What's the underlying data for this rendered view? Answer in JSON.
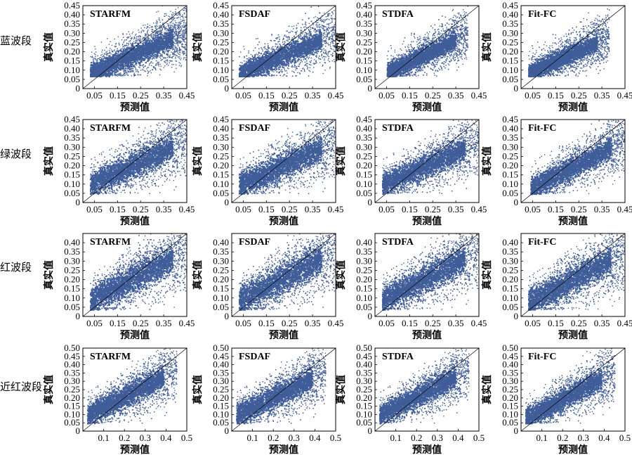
{
  "figure": {
    "x_axis_label": "预测值",
    "y_axis_label": "真实值",
    "point_color": "#3f5d98",
    "row_labels": [
      "蓝波段",
      "绿波段",
      "红波段",
      "近红波段"
    ],
    "method_labels": [
      "STARFM",
      "FSDAF",
      "STDFA",
      "Fit-FC"
    ]
  },
  "chart_data": [
    {
      "type": "scatter",
      "band": "蓝波段",
      "panel_label": "STARFM",
      "xlabel": "预测值",
      "ylabel": "真实值",
      "xlim": [
        0,
        0.45
      ],
      "ylim": [
        0,
        0.45
      ],
      "xticks": [
        "0.05",
        "0.15",
        "0.25",
        "0.35",
        "0.45"
      ],
      "yticks": [
        "0",
        "0.05",
        "0.10",
        "0.15",
        "0.20",
        "0.25",
        "0.30",
        "0.35",
        "0.40",
        "0.45"
      ],
      "reference_line": "1:1",
      "trend": {
        "x": [
          0.03,
          0.45
        ],
        "y": [
          0.085,
          0.31
        ]
      },
      "y_floor": 0.07,
      "spread": 0.055
    },
    {
      "type": "scatter",
      "band": "蓝波段",
      "panel_label": "FSDAF",
      "xlabel": "预测值",
      "ylabel": "真实值",
      "xlim": [
        0,
        0.45
      ],
      "ylim": [
        0,
        0.45
      ],
      "xticks": [
        "0.05",
        "0.15",
        "0.25",
        "0.35",
        "0.45"
      ],
      "yticks": [
        "0",
        "0.05",
        "0.10",
        "0.15",
        "0.20",
        "0.25",
        "0.30",
        "0.35",
        "0.40",
        "0.45"
      ],
      "reference_line": "1:1",
      "trend": {
        "x": [
          0.03,
          0.45
        ],
        "y": [
          0.085,
          0.3
        ]
      },
      "y_floor": 0.07,
      "spread": 0.055
    },
    {
      "type": "scatter",
      "band": "蓝波段",
      "panel_label": "STDFA",
      "xlabel": "预测值",
      "ylabel": "真实值",
      "xlim": [
        0,
        0.45
      ],
      "ylim": [
        0,
        0.45
      ],
      "xticks": [
        "0.05",
        "0.15",
        "0.25",
        "0.35",
        "0.45"
      ],
      "yticks": [
        "0",
        "0.05",
        "0.10",
        "0.15",
        "0.20",
        "0.25",
        "0.30",
        "0.35",
        "0.40",
        "0.45"
      ],
      "reference_line": "1:1",
      "trend": {
        "x": [
          0.05,
          0.4
        ],
        "y": [
          0.09,
          0.3
        ]
      },
      "y_floor": 0.07,
      "spread": 0.05
    },
    {
      "type": "scatter",
      "band": "蓝波段",
      "panel_label": "Fit-FC",
      "xlabel": "预测值",
      "ylabel": "真实值",
      "xlim": [
        0,
        0.45
      ],
      "ylim": [
        0,
        0.45
      ],
      "xticks": [
        "0.05",
        "0.15",
        "0.25",
        "0.35",
        "0.45"
      ],
      "yticks": [
        "0",
        "0.05",
        "0.10",
        "0.15",
        "0.20",
        "0.25",
        "0.30",
        "0.35",
        "0.40",
        "0.45"
      ],
      "reference_line": "1:1",
      "trend": {
        "x": [
          0.03,
          0.38
        ],
        "y": [
          0.09,
          0.28
        ]
      },
      "y_floor": 0.07,
      "spread": 0.05
    },
    {
      "type": "scatter",
      "band": "绿波段",
      "panel_label": "STARFM",
      "xlabel": "预测值",
      "ylabel": "真实值",
      "xlim": [
        0,
        0.45
      ],
      "ylim": [
        0,
        0.45
      ],
      "xticks": [
        "0.05",
        "0.15",
        "0.25",
        "0.35",
        "0.45"
      ],
      "yticks": [
        "0",
        "0.05",
        "0.10",
        "0.15",
        "0.20",
        "0.25",
        "0.30",
        "0.35",
        "0.40",
        "0.45"
      ],
      "reference_line": "1:1",
      "trend": {
        "x": [
          0.03,
          0.45
        ],
        "y": [
          0.1,
          0.34
        ]
      },
      "y_floor": 0.05,
      "spread": 0.07
    },
    {
      "type": "scatter",
      "band": "绿波段",
      "panel_label": "FSDAF",
      "xlabel": "预测值",
      "ylabel": "真实值",
      "xlim": [
        0,
        0.45
      ],
      "ylim": [
        0,
        0.45
      ],
      "xticks": [
        "0.05",
        "0.15",
        "0.25",
        "0.35",
        "0.45"
      ],
      "yticks": [
        "0",
        "0.05",
        "0.10",
        "0.15",
        "0.20",
        "0.25",
        "0.30",
        "0.35",
        "0.40",
        "0.45"
      ],
      "reference_line": "1:1",
      "trend": {
        "x": [
          0.03,
          0.45
        ],
        "y": [
          0.1,
          0.33
        ]
      },
      "y_floor": 0.05,
      "spread": 0.07
    },
    {
      "type": "scatter",
      "band": "绿波段",
      "panel_label": "STDFA",
      "xlabel": "预测值",
      "ylabel": "真实值",
      "xlim": [
        0,
        0.45
      ],
      "ylim": [
        0,
        0.45
      ],
      "xticks": [
        "0.05",
        "0.15",
        "0.25",
        "0.35",
        "0.45"
      ],
      "yticks": [
        "0",
        "0.05",
        "0.10",
        "0.15",
        "0.20",
        "0.25",
        "0.30",
        "0.35",
        "0.40",
        "0.45"
      ],
      "reference_line": "1:1",
      "trend": {
        "x": [
          0.03,
          0.45
        ],
        "y": [
          0.1,
          0.33
        ]
      },
      "y_floor": 0.05,
      "spread": 0.065
    },
    {
      "type": "scatter",
      "band": "绿波段",
      "panel_label": "Fit-FC",
      "xlabel": "预测值",
      "ylabel": "真实值",
      "xlim": [
        0,
        0.45
      ],
      "ylim": [
        0,
        0.45
      ],
      "xticks": [
        "0.05",
        "0.15",
        "0.25",
        "0.35",
        "0.45"
      ],
      "yticks": [
        "0",
        "0.05",
        "0.10",
        "0.15",
        "0.20",
        "0.25",
        "0.30",
        "0.35",
        "0.40",
        "0.45"
      ],
      "reference_line": "1:1",
      "trend": {
        "x": [
          0.04,
          0.45
        ],
        "y": [
          0.08,
          0.34
        ]
      },
      "y_floor": 0.05,
      "spread": 0.06
    },
    {
      "type": "scatter",
      "band": "红波段",
      "panel_label": "STARFM",
      "xlabel": "预测值",
      "ylabel": "真实值",
      "xlim": [
        0,
        0.45
      ],
      "ylim": [
        0,
        0.45
      ],
      "xticks": [
        "0.05",
        "0.15",
        "0.25",
        "0.35",
        "0.45"
      ],
      "yticks": [
        "0",
        "0.05",
        "0.10",
        "0.15",
        "0.20",
        "0.25",
        "0.30",
        "0.35",
        "0.40"
      ],
      "reference_line": "1:1",
      "trend": {
        "x": [
          0.03,
          0.45
        ],
        "y": [
          0.09,
          0.36
        ]
      },
      "y_floor": 0.04,
      "spread": 0.08
    },
    {
      "type": "scatter",
      "band": "红波段",
      "panel_label": "FSDAF",
      "xlabel": "预测值",
      "ylabel": "真实值",
      "xlim": [
        0,
        0.45
      ],
      "ylim": [
        0,
        0.45
      ],
      "xticks": [
        "0.05",
        "0.15",
        "0.25",
        "0.35",
        "0.45"
      ],
      "yticks": [
        "0",
        "0.05",
        "0.10",
        "0.15",
        "0.20",
        "0.25",
        "0.30",
        "0.35",
        "0.40"
      ],
      "reference_line": "1:1",
      "trend": {
        "x": [
          0.03,
          0.45
        ],
        "y": [
          0.09,
          0.36
        ]
      },
      "y_floor": 0.04,
      "spread": 0.08
    },
    {
      "type": "scatter",
      "band": "红波段",
      "panel_label": "STDFA",
      "xlabel": "预测值",
      "ylabel": "真实值",
      "xlim": [
        0,
        0.45
      ],
      "ylim": [
        0,
        0.45
      ],
      "xticks": [
        "0.05",
        "0.15",
        "0.25",
        "0.35",
        "0.45"
      ],
      "yticks": [
        "0",
        "0.05",
        "0.10",
        "0.15",
        "0.20",
        "0.25",
        "0.30",
        "0.35",
        "0.40"
      ],
      "reference_line": "1:1",
      "trend": {
        "x": [
          0.03,
          0.45
        ],
        "y": [
          0.09,
          0.36
        ]
      },
      "y_floor": 0.04,
      "spread": 0.075
    },
    {
      "type": "scatter",
      "band": "红波段",
      "panel_label": "Fit-FC",
      "xlabel": "预测值",
      "ylabel": "真实值",
      "xlim": [
        0,
        0.45
      ],
      "ylim": [
        0,
        0.45
      ],
      "xticks": [
        "0.05",
        "0.15",
        "0.25",
        "0.35",
        "0.45"
      ],
      "yticks": [
        "0",
        "0.05",
        "0.10",
        "0.15",
        "0.20",
        "0.25",
        "0.30",
        "0.35",
        "0.40"
      ],
      "reference_line": "1:1",
      "trend": {
        "x": [
          0.03,
          0.45
        ],
        "y": [
          0.08,
          0.35
        ]
      },
      "y_floor": 0.04,
      "spread": 0.075
    },
    {
      "type": "scatter",
      "band": "近红波段",
      "panel_label": "STARFM",
      "xlabel": "预测值",
      "ylabel": "真实值",
      "xlim": [
        0,
        0.5
      ],
      "ylim": [
        0,
        0.5
      ],
      "xticks": [
        "0.1",
        "0.2",
        "0.3",
        "0.4",
        "0.5"
      ],
      "yticks": [
        "0",
        "0.05",
        "0.10",
        "0.15",
        "0.20",
        "0.25",
        "0.30",
        "0.35",
        "0.40",
        "0.45",
        "0.50"
      ],
      "reference_line": "1:1",
      "trend": {
        "x": [
          0.02,
          0.45
        ],
        "y": [
          0.1,
          0.37
        ]
      },
      "y_floor": 0.05,
      "spread": 0.07
    },
    {
      "type": "scatter",
      "band": "近红波段",
      "panel_label": "FSDAF",
      "xlabel": "预测值",
      "ylabel": "真实值",
      "xlim": [
        0,
        0.5
      ],
      "ylim": [
        0,
        0.5
      ],
      "xticks": [
        "0.1",
        "0.2",
        "0.3",
        "0.4",
        "0.5"
      ],
      "yticks": [
        "0",
        "0.05",
        "0.10",
        "0.15",
        "0.20",
        "0.25",
        "0.30",
        "0.35",
        "0.40",
        "0.45",
        "0.50"
      ],
      "reference_line": "1:1",
      "trend": {
        "x": [
          0.02,
          0.45
        ],
        "y": [
          0.1,
          0.36
        ]
      },
      "y_floor": 0.05,
      "spread": 0.07
    },
    {
      "type": "scatter",
      "band": "近红波段",
      "panel_label": "STDFA",
      "xlabel": "预测值",
      "ylabel": "真实值",
      "xlim": [
        0,
        0.5
      ],
      "ylim": [
        0,
        0.5
      ],
      "xticks": [
        "0.1",
        "0.2",
        "0.3",
        "0.4",
        "0.5"
      ],
      "yticks": [
        "0",
        "0.05",
        "0.10",
        "0.15",
        "0.20",
        "0.25",
        "0.30",
        "0.35",
        "0.40",
        "0.45",
        "0.50"
      ],
      "reference_line": "1:1",
      "trend": {
        "x": [
          0.02,
          0.45
        ],
        "y": [
          0.1,
          0.37
        ]
      },
      "y_floor": 0.05,
      "spread": 0.065
    },
    {
      "type": "scatter",
      "band": "近红波段",
      "panel_label": "Fit-FC",
      "xlabel": "预测值",
      "ylabel": "真实值",
      "xlim": [
        0,
        0.5
      ],
      "ylim": [
        0,
        0.5
      ],
      "xticks": [
        "0.1",
        "0.2",
        "0.3",
        "0.4",
        "0.5"
      ],
      "yticks": [
        "0",
        "0.05",
        "0.10",
        "0.15",
        "0.20",
        "0.25",
        "0.30",
        "0.35",
        "0.40",
        "0.45",
        "0.50"
      ],
      "reference_line": "1:1",
      "trend": {
        "x": [
          0.02,
          0.45
        ],
        "y": [
          0.08,
          0.36
        ]
      },
      "y_floor": 0.05,
      "spread": 0.065
    }
  ]
}
